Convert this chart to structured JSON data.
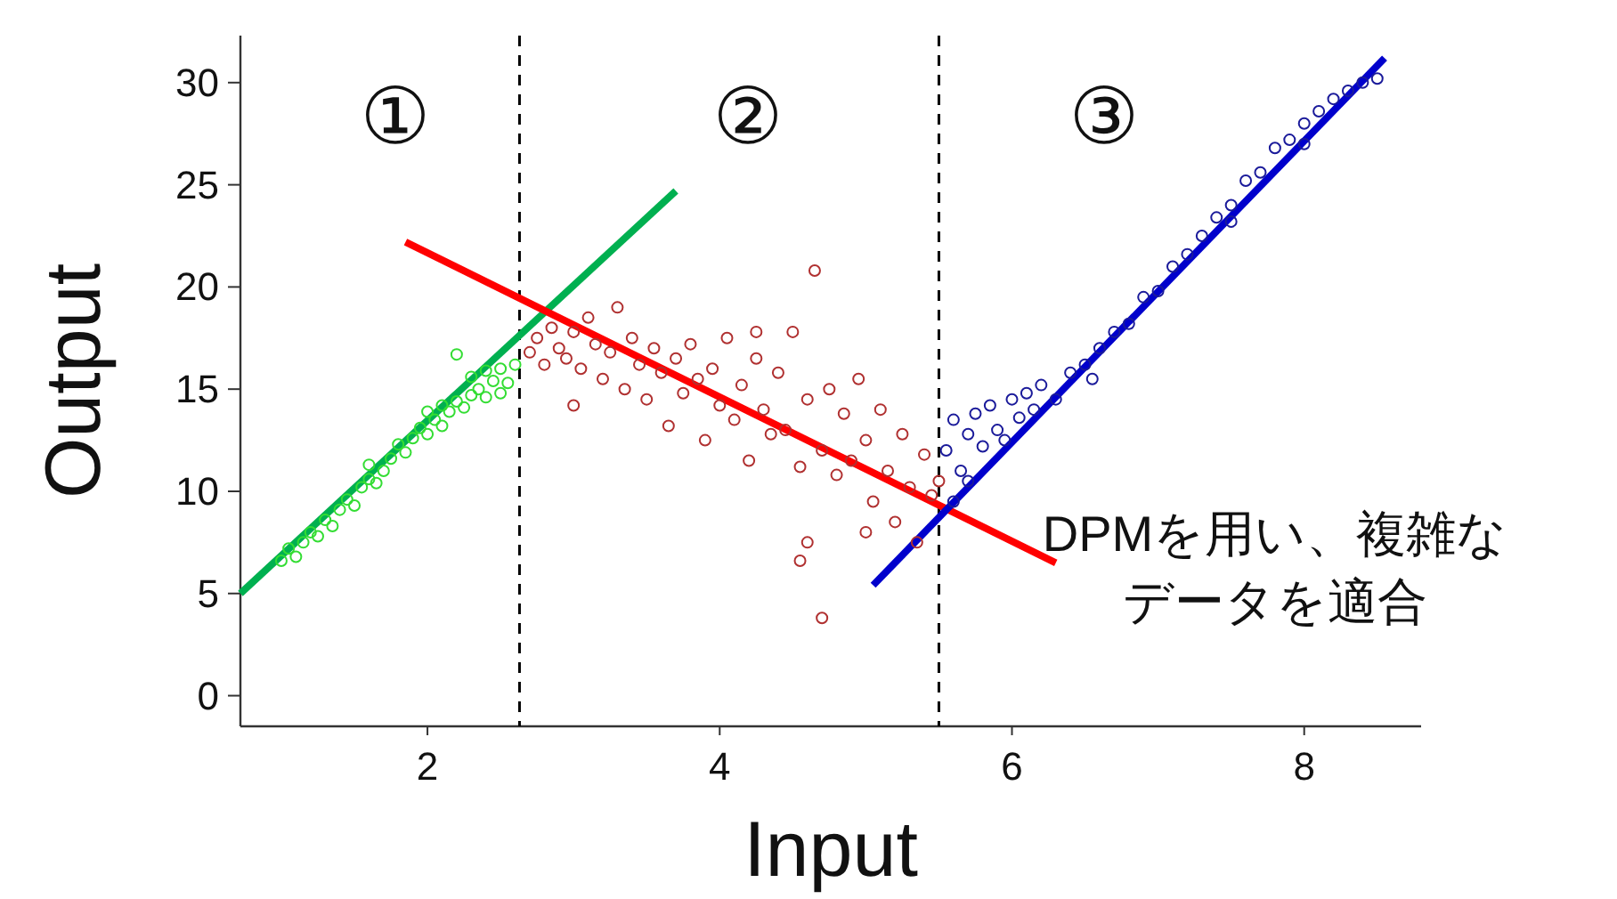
{
  "chart_data": {
    "type": "scatter",
    "xlabel": "Input",
    "ylabel": "Output",
    "xlim": [
      0.72,
      8.8
    ],
    "ylim": [
      -1.5,
      32.3
    ],
    "xticks": [
      2,
      4,
      6,
      8
    ],
    "yticks": [
      0,
      5,
      10,
      15,
      20,
      25,
      30
    ],
    "grid": false,
    "series": [
      {
        "marker": "circle",
        "color": "#33dd33",
        "x": [
          1.0,
          1.05,
          1.1,
          1.15,
          1.2,
          1.25,
          1.3,
          1.35,
          1.4,
          1.45,
          1.5,
          1.55,
          1.6,
          1.65,
          1.7,
          1.75,
          1.8,
          1.85,
          1.9,
          1.95,
          2.0,
          2.05,
          2.1,
          2.15,
          2.2,
          2.25,
          2.3,
          2.35,
          2.4,
          2.45,
          2.5,
          2.55,
          2.6,
          2.1,
          2.3,
          2.0,
          1.6,
          2.5,
          2.4,
          2.2
        ],
        "values": [
          6.6,
          7.2,
          6.8,
          7.5,
          8.0,
          7.8,
          8.6,
          8.3,
          9.1,
          9.6,
          9.3,
          10.2,
          10.6,
          10.4,
          11.0,
          11.6,
          12.3,
          11.9,
          12.6,
          13.1,
          12.8,
          13.5,
          13.2,
          13.9,
          14.4,
          14.1,
          14.7,
          15.0,
          14.6,
          15.4,
          16.0,
          15.3,
          16.2,
          14.2,
          15.6,
          13.9,
          11.3,
          14.8,
          15.9,
          16.7
        ]
      },
      {
        "marker": "circle",
        "color": "#b03030",
        "x": [
          2.7,
          2.75,
          2.8,
          2.85,
          2.9,
          2.95,
          3.0,
          3.05,
          3.1,
          3.15,
          3.2,
          3.25,
          3.3,
          3.35,
          3.4,
          3.45,
          3.5,
          3.55,
          3.6,
          3.65,
          3.7,
          3.75,
          3.8,
          3.85,
          3.9,
          3.95,
          4.0,
          4.05,
          4.1,
          4.15,
          4.2,
          4.25,
          4.3,
          4.35,
          4.4,
          4.45,
          4.5,
          4.55,
          4.6,
          4.65,
          4.7,
          4.75,
          4.8,
          4.85,
          4.9,
          4.95,
          5.0,
          5.05,
          5.1,
          5.15,
          5.2,
          5.25,
          5.3,
          5.35,
          5.4,
          5.45,
          4.55,
          4.6,
          4.7,
          5.0,
          5.5,
          3.0,
          4.25
        ],
        "values": [
          16.8,
          17.5,
          16.2,
          18.0,
          17.0,
          16.5,
          17.8,
          16.0,
          18.5,
          17.2,
          15.5,
          16.8,
          19.0,
          15.0,
          17.5,
          16.2,
          14.5,
          17.0,
          15.8,
          13.2,
          16.5,
          14.8,
          17.2,
          15.5,
          12.5,
          16.0,
          14.2,
          17.5,
          13.5,
          15.2,
          11.5,
          16.5,
          14.0,
          12.8,
          15.8,
          13.0,
          17.8,
          11.2,
          14.5,
          20.8,
          12.0,
          15.0,
          10.8,
          13.8,
          11.5,
          15.5,
          12.5,
          9.5,
          14.0,
          11.0,
          8.5,
          12.8,
          10.2,
          7.5,
          11.8,
          9.8,
          6.6,
          7.5,
          3.8,
          8.0,
          10.5,
          14.2,
          17.8
        ]
      },
      {
        "marker": "circle",
        "color": "#1a1a9a",
        "x": [
          5.55,
          5.6,
          5.65,
          5.7,
          5.75,
          5.8,
          5.85,
          5.9,
          5.95,
          6.0,
          6.05,
          6.1,
          6.15,
          6.2,
          6.3,
          6.4,
          6.5,
          6.55,
          6.6,
          6.7,
          6.8,
          6.9,
          7.0,
          7.1,
          7.2,
          7.3,
          7.4,
          7.5,
          7.6,
          7.7,
          7.8,
          7.9,
          8.0,
          8.1,
          8.2,
          8.3,
          8.4,
          8.5,
          5.6,
          5.7,
          8.0,
          7.5
        ],
        "values": [
          12.0,
          13.5,
          11.0,
          12.8,
          13.8,
          12.2,
          14.2,
          13.0,
          12.5,
          14.5,
          13.6,
          14.8,
          14.0,
          15.2,
          14.5,
          15.8,
          16.2,
          15.5,
          17.0,
          17.8,
          18.2,
          19.5,
          19.8,
          21.0,
          21.6,
          22.5,
          23.4,
          24.0,
          25.2,
          25.6,
          26.8,
          27.2,
          28.0,
          28.6,
          29.2,
          29.6,
          30.0,
          30.2,
          9.5,
          10.5,
          27.0,
          23.2
        ]
      },
      {
        "type": "line",
        "marker": "none",
        "line_style": "solid",
        "color": "#00b050",
        "x": [
          0.72,
          3.7
        ],
        "values": [
          5.0,
          24.7
        ]
      },
      {
        "type": "line",
        "marker": "none",
        "line_style": "solid",
        "color": "#ff0000",
        "x": [
          1.85,
          6.3
        ],
        "values": [
          22.2,
          6.5
        ]
      },
      {
        "type": "line",
        "marker": "none",
        "line_style": "solid",
        "color": "#0000cc",
        "x": [
          5.05,
          8.55
        ],
        "values": [
          5.4,
          31.2
        ]
      }
    ],
    "ref_lines": [
      {
        "axis": "x",
        "value": 2.63,
        "color": "#000000",
        "line_style": "dashed"
      },
      {
        "axis": "x",
        "value": 5.5,
        "color": "#000000",
        "line_style": "dashed"
      }
    ],
    "annotations": [
      "①",
      "②",
      "③",
      "DPMを用い、複雑な",
      "データを適合"
    ]
  }
}
